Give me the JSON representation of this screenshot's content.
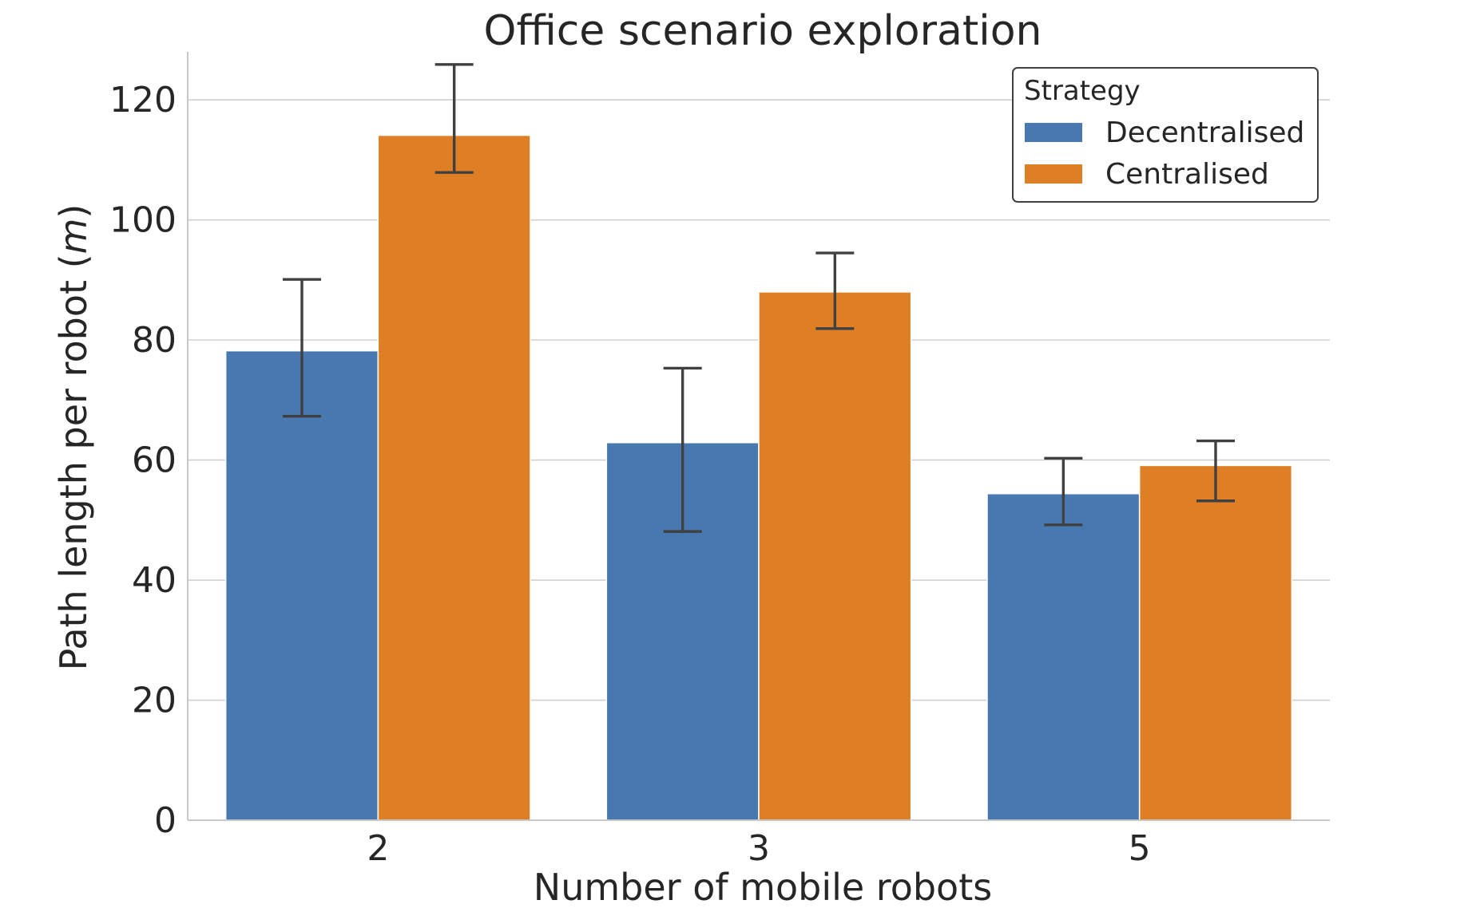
{
  "chart_data": {
    "type": "bar",
    "title": "Office scenario exploration",
    "xlabel": "Number of mobile robots",
    "ylabel": "Path length per robot (m)",
    "ylabel_parts": [
      "Path length per robot (",
      "m",
      ")"
    ],
    "categories": [
      "2",
      "3",
      "5"
    ],
    "ylim": [
      0,
      128
    ],
    "yticks": [
      0,
      20,
      40,
      60,
      80,
      100,
      120
    ],
    "grid": true,
    "legend": {
      "title": "Strategy",
      "placement": "top-right"
    },
    "series": [
      {
        "name": "Decentralised",
        "color": "#4878b0",
        "values": [
          78.2,
          62.9,
          54.4
        ],
        "err_low": [
          67.3,
          48.1,
          49.2
        ],
        "err_high": [
          90.1,
          75.3,
          60.3
        ]
      },
      {
        "name": "Centralised",
        "color": "#de7f26",
        "values": [
          114.1,
          88.0,
          59.1
        ],
        "err_low": [
          107.9,
          81.9,
          53.2
        ],
        "err_high": [
          125.9,
          94.5,
          63.2
        ]
      }
    ]
  }
}
